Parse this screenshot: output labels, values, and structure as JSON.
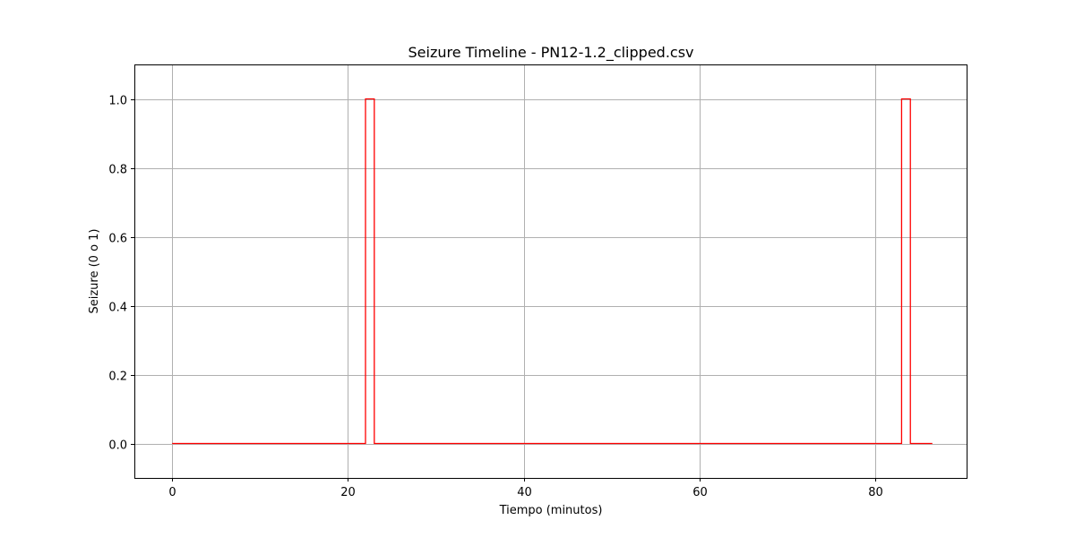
{
  "chart_data": {
    "type": "line",
    "drawstyle": "steps-post",
    "title": "Seizure Timeline - PN12-1.2_clipped.csv",
    "xlabel": "Tiempo (minutos)",
    "ylabel": "Seizure (0 o 1)",
    "xlim": [
      -4.3,
      90.5
    ],
    "ylim": [
      -0.1,
      1.1
    ],
    "xticks": [
      0,
      20,
      40,
      60,
      80
    ],
    "yticks": [
      0.0,
      0.2,
      0.4,
      0.6,
      0.8,
      1.0
    ],
    "xtick_labels": [
      "0",
      "20",
      "40",
      "60",
      "80"
    ],
    "ytick_labels": [
      "0.0",
      "0.2",
      "0.4",
      "0.6",
      "0.8",
      "1.0"
    ],
    "grid": true,
    "series": [
      {
        "color": "#ff0000",
        "x": [
          0,
          22,
          23,
          83,
          84,
          86.5
        ],
        "y": [
          0,
          1,
          0,
          1,
          0,
          0
        ]
      }
    ]
  }
}
